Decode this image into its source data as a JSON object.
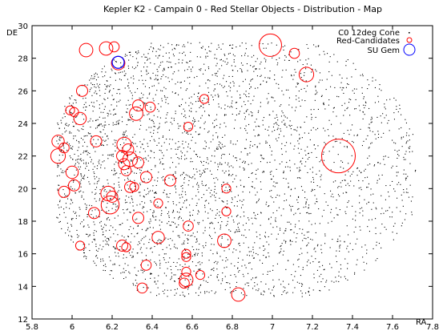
{
  "chart_data": {
    "type": "scatter",
    "title": "Kepler K2 - Campain 0 - Red Stellar Objects - Distribution - Map",
    "xlabel": "RA",
    "ylabel": "DE",
    "xlim": [
      5.8,
      7.8
    ],
    "ylim": [
      12,
      30
    ],
    "x_ticks": [
      "5.8",
      "6",
      "6.2",
      "6.4",
      "6.6",
      "6.8",
      "7",
      "7.2",
      "7.4",
      "7.6",
      "7.8"
    ],
    "y_ticks": [
      "12",
      "14",
      "16",
      "18",
      "20",
      "22",
      "24",
      "26",
      "28",
      "30"
    ],
    "grid": false,
    "legend_position": "top-right",
    "colors": {
      "field_stars": "#000000",
      "red_candidates": "#ff0000",
      "su_gem": "#0000ff"
    },
    "series": [
      {
        "name": "C0 12deg Cone",
        "marker": "dot",
        "field_description": "dense field of several thousand faint point sources filling RA 5.9-7.7, DE 13.4-29.0; densest toward low RA, thinning toward high RA",
        "region": {
          "ra_min": 5.92,
          "ra_max": 7.72,
          "de_min": 13.4,
          "de_max": 29.0
        }
      },
      {
        "name": "Red-Candidates",
        "marker": "open-circle",
        "points": [
          {
            "x": 6.07,
            "y": 28.5,
            "size": 1.2
          },
          {
            "x": 6.17,
            "y": 28.6,
            "size": 1.2
          },
          {
            "x": 6.21,
            "y": 28.7,
            "size": 0.9
          },
          {
            "x": 6.23,
            "y": 27.7,
            "size": 1.2
          },
          {
            "x": 6.99,
            "y": 28.8,
            "size": 2.0
          },
          {
            "x": 7.11,
            "y": 28.3,
            "size": 0.9
          },
          {
            "x": 7.17,
            "y": 27.0,
            "size": 1.3
          },
          {
            "x": 6.05,
            "y": 26.0,
            "size": 1.0
          },
          {
            "x": 6.66,
            "y": 25.5,
            "size": 0.8
          },
          {
            "x": 6.33,
            "y": 25.1,
            "size": 1.0
          },
          {
            "x": 6.39,
            "y": 25.0,
            "size": 0.9
          },
          {
            "x": 6.32,
            "y": 24.6,
            "size": 1.2
          },
          {
            "x": 5.99,
            "y": 24.8,
            "size": 0.8
          },
          {
            "x": 6.04,
            "y": 24.3,
            "size": 1.1
          },
          {
            "x": 6.01,
            "y": 24.7,
            "size": 0.8
          },
          {
            "x": 6.58,
            "y": 23.8,
            "size": 0.8
          },
          {
            "x": 6.12,
            "y": 22.9,
            "size": 1.0
          },
          {
            "x": 5.93,
            "y": 22.9,
            "size": 1.1
          },
          {
            "x": 5.96,
            "y": 22.5,
            "size": 0.9
          },
          {
            "x": 5.93,
            "y": 22.0,
            "size": 1.3
          },
          {
            "x": 6.26,
            "y": 22.7,
            "size": 1.3
          },
          {
            "x": 6.28,
            "y": 22.4,
            "size": 1.0
          },
          {
            "x": 6.25,
            "y": 22.0,
            "size": 1.0
          },
          {
            "x": 6.29,
            "y": 21.8,
            "size": 1.3
          },
          {
            "x": 6.26,
            "y": 21.5,
            "size": 1.0
          },
          {
            "x": 6.33,
            "y": 21.6,
            "size": 1.0
          },
          {
            "x": 6.27,
            "y": 21.1,
            "size": 0.9
          },
          {
            "x": 7.33,
            "y": 22.0,
            "size": 3.0
          },
          {
            "x": 6.0,
            "y": 21.0,
            "size": 1.1
          },
          {
            "x": 6.37,
            "y": 20.7,
            "size": 1.0
          },
          {
            "x": 6.49,
            "y": 20.5,
            "size": 1.0
          },
          {
            "x": 6.01,
            "y": 20.2,
            "size": 1.0
          },
          {
            "x": 5.96,
            "y": 19.8,
            "size": 1.0
          },
          {
            "x": 6.29,
            "y": 20.1,
            "size": 1.0
          },
          {
            "x": 6.31,
            "y": 20.1,
            "size": 0.8
          },
          {
            "x": 6.77,
            "y": 20.0,
            "size": 0.8
          },
          {
            "x": 6.18,
            "y": 19.7,
            "size": 1.3
          },
          {
            "x": 6.2,
            "y": 19.5,
            "size": 1.0
          },
          {
            "x": 6.19,
            "y": 19.0,
            "size": 1.6
          },
          {
            "x": 6.43,
            "y": 19.1,
            "size": 0.8
          },
          {
            "x": 6.11,
            "y": 18.5,
            "size": 1.0
          },
          {
            "x": 6.77,
            "y": 18.6,
            "size": 0.8
          },
          {
            "x": 6.33,
            "y": 18.2,
            "size": 1.0
          },
          {
            "x": 6.58,
            "y": 17.7,
            "size": 0.9
          },
          {
            "x": 6.43,
            "y": 17.0,
            "size": 1.1
          },
          {
            "x": 6.76,
            "y": 16.8,
            "size": 1.2
          },
          {
            "x": 6.04,
            "y": 16.5,
            "size": 0.8
          },
          {
            "x": 6.25,
            "y": 16.5,
            "size": 1.0
          },
          {
            "x": 6.27,
            "y": 16.4,
            "size": 0.8
          },
          {
            "x": 6.57,
            "y": 16.0,
            "size": 0.8
          },
          {
            "x": 6.57,
            "y": 15.8,
            "size": 0.8
          },
          {
            "x": 6.37,
            "y": 15.3,
            "size": 0.9
          },
          {
            "x": 6.57,
            "y": 14.9,
            "size": 0.8
          },
          {
            "x": 6.57,
            "y": 14.4,
            "size": 1.2
          },
          {
            "x": 6.56,
            "y": 14.2,
            "size": 0.9
          },
          {
            "x": 6.64,
            "y": 14.7,
            "size": 0.8
          },
          {
            "x": 6.35,
            "y": 13.9,
            "size": 0.9
          },
          {
            "x": 6.83,
            "y": 13.5,
            "size": 1.2
          }
        ]
      },
      {
        "name": "SU Gem",
        "marker": "open-circle",
        "points": [
          {
            "x": 6.23,
            "y": 27.75
          }
        ]
      }
    ]
  }
}
